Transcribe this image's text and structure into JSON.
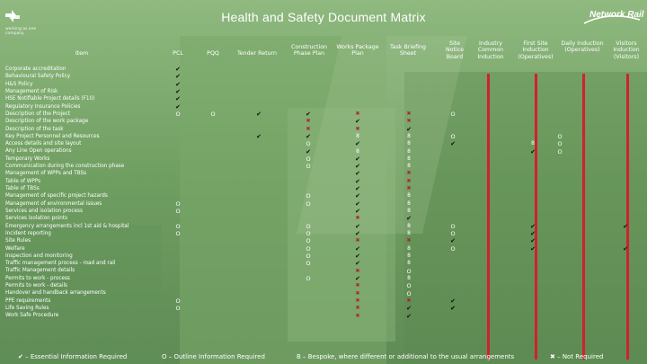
{
  "header": {
    "title": "Health and Safety Document Matrix",
    "left_logo_tagline": "working as one company",
    "right_logo": "Network Rail"
  },
  "columns": [
    {
      "id": "item",
      "label": "Item"
    },
    {
      "id": "pcl",
      "label": "PCL"
    },
    {
      "id": "pqq",
      "label": "PQQ"
    },
    {
      "id": "tender",
      "label": "Tender Return"
    },
    {
      "id": "cpp",
      "label": "Construction Phase Plan"
    },
    {
      "id": "wpp",
      "label": "Works Package Plan"
    },
    {
      "id": "tbs",
      "label": "Task Briefing Sheet"
    },
    {
      "id": "site_notice",
      "label": "Site Notice Board"
    },
    {
      "id": "industry",
      "label": "Industry Common Induction"
    },
    {
      "id": "first_site",
      "label": "First Site Induction (Operatives)"
    },
    {
      "id": "daily",
      "label": "Daily Induction (Operatives)"
    },
    {
      "id": "visitors",
      "label": "Visitors Induction (Visitors)"
    }
  ],
  "items": [
    "Corporate accreditation",
    "Behavioural Safety Policy",
    "H&S Policy",
    "Management of Risk",
    "HSE Notifiable Project details (F10)",
    "Regulatory Insurance Policies",
    "Description of the Project",
    "Description of the work package",
    "Description of the task",
    "Key Project Personnel and Resources",
    "Access details and site layout",
    "Any Line Open operations",
    "Temporary Works",
    "Communication during the construction phase",
    "Management of WPPs and TBSs",
    "Table of WPPs",
    "Table of TBSs",
    "Management of specific project hazards",
    "Management of environmental issues",
    "Services and isolation process",
    "Services isolation points",
    "Emergency arrangements incl 1st aid & hospital",
    "Incident reporting",
    "Site Rules",
    "Welfare",
    "Inspection and monitoring",
    "Traffic management process - road and rail",
    "Traffic Management details",
    "Permits to work - process",
    "Permits to work - details",
    "Handover and handback arrangements",
    "PPE requirements",
    "Life Saving Rules",
    "Work Safe Procedure"
  ],
  "matrix": [
    {
      "row": 0,
      "pcl": "tick"
    },
    {
      "row": 1,
      "pcl": "tick"
    },
    {
      "row": 2,
      "pcl": "tick"
    },
    {
      "row": 3,
      "pcl": "tick"
    },
    {
      "row": 4,
      "pcl": "tick"
    },
    {
      "row": 5,
      "pcl": "tick"
    },
    {
      "row": 6,
      "pcl": "O",
      "pqq": "O",
      "tender": "tick",
      "cpp": "tick",
      "wpp": "cross",
      "tbs": "cross",
      "site_notice": "O"
    },
    {
      "row": 7,
      "cpp": "cross",
      "wpp": "tick",
      "tbs": "cross"
    },
    {
      "row": 8,
      "cpp": "cross",
      "wpp": "cross",
      "tbs": "tick"
    },
    {
      "row": 9,
      "tender": "tick",
      "cpp": "tick",
      "wpp": "8",
      "tbs": "8",
      "site_notice": "O",
      "first_site": "O"
    },
    {
      "row": 10,
      "cpp": "O",
      "wpp": "tick",
      "tbs": "8",
      "tbs_extra": "8",
      "industry": "tick",
      "first_site": "O",
      "daily": "8"
    },
    {
      "row": 11,
      "cpp": "tick",
      "wpp": "8",
      "tbs": "8",
      "first_site": "O",
      "daily": "tick"
    },
    {
      "row": 12,
      "cpp": "O",
      "wpp": "tick",
      "tbs": "8"
    },
    {
      "row": 13,
      "cpp": "O",
      "wpp": "tick",
      "tbs": "8"
    },
    {
      "row": 14,
      "wpp": "tick",
      "tbs": "cross"
    },
    {
      "row": 15,
      "wpp": "tick",
      "tbs": "cross"
    },
    {
      "row": 16,
      "wpp": "tick",
      "tbs": "cross"
    },
    {
      "row": 17,
      "cpp": "O",
      "wpp": "tick",
      "tbs": "8"
    },
    {
      "row": 18,
      "pcl": "O",
      "cpp": "O",
      "wpp": "tick",
      "tbs": "8"
    },
    {
      "row": 19,
      "pcl": "O",
      "wpp": "tick",
      "tbs": "8"
    },
    {
      "row": 20,
      "wpp": "cross",
      "tbs": "tick"
    },
    {
      "row": 21,
      "pcl": "O",
      "cpp": "O",
      "wpp": "tick",
      "tbs": "8",
      "site_notice": "O",
      "daily": "tick",
      "visitors": "tick"
    },
    {
      "row": 22,
      "pcl": "O",
      "cpp": "O",
      "wpp": "tick",
      "tbs": "8",
      "site_notice": "O",
      "daily": "tick"
    },
    {
      "row": 23,
      "cpp": "O",
      "wpp": "cross",
      "tbs": "cross",
      "site_notice": "tick",
      "daily": "tick"
    },
    {
      "row": 24,
      "cpp": "O",
      "wpp": "tick",
      "tbs": "8",
      "site_notice": "O",
      "daily": "tick",
      "visitors": "tick"
    },
    {
      "row": 25,
      "cpp": "O",
      "wpp": "tick",
      "tbs": "8"
    },
    {
      "row": 26,
      "cpp": "O",
      "wpp": "tick",
      "tbs": "8"
    },
    {
      "row": 27,
      "wpp": "cross",
      "tbs": "O"
    },
    {
      "row": 28,
      "cpp": "O",
      "wpp": "tick",
      "tbs": "8"
    },
    {
      "row": 29,
      "wpp": "cross",
      "tbs": "O"
    },
    {
      "row": 30,
      "wpp": "cross",
      "tbs": "O"
    },
    {
      "row": 31,
      "pcl": "O",
      "wpp": "cross",
      "tbs": "cross",
      "industry": "tick"
    },
    {
      "row": 32,
      "pcl": "O",
      "wpp": "cross",
      "tbs": "tick",
      "site_notice": "tick",
      "industry": "tick"
    },
    {
      "row": 33,
      "wpp": "cross",
      "tbs": "tick"
    }
  ],
  "legend": {
    "essential": "✔ – Essential Information Required",
    "outline": "O – Outline Information Required",
    "bespoke": "B – Bespoke, where different or additional to the usual arrangements",
    "not_required": "✖ – Not Required"
  },
  "colors": {
    "background": "#6f9e61",
    "red_bar": "#d3202e",
    "cross": "#b0242c",
    "tick": "#111111"
  },
  "icons": {
    "left_logo": "network-rail-arrows-icon",
    "right_logo": "network-rail-wordmark-icon"
  }
}
